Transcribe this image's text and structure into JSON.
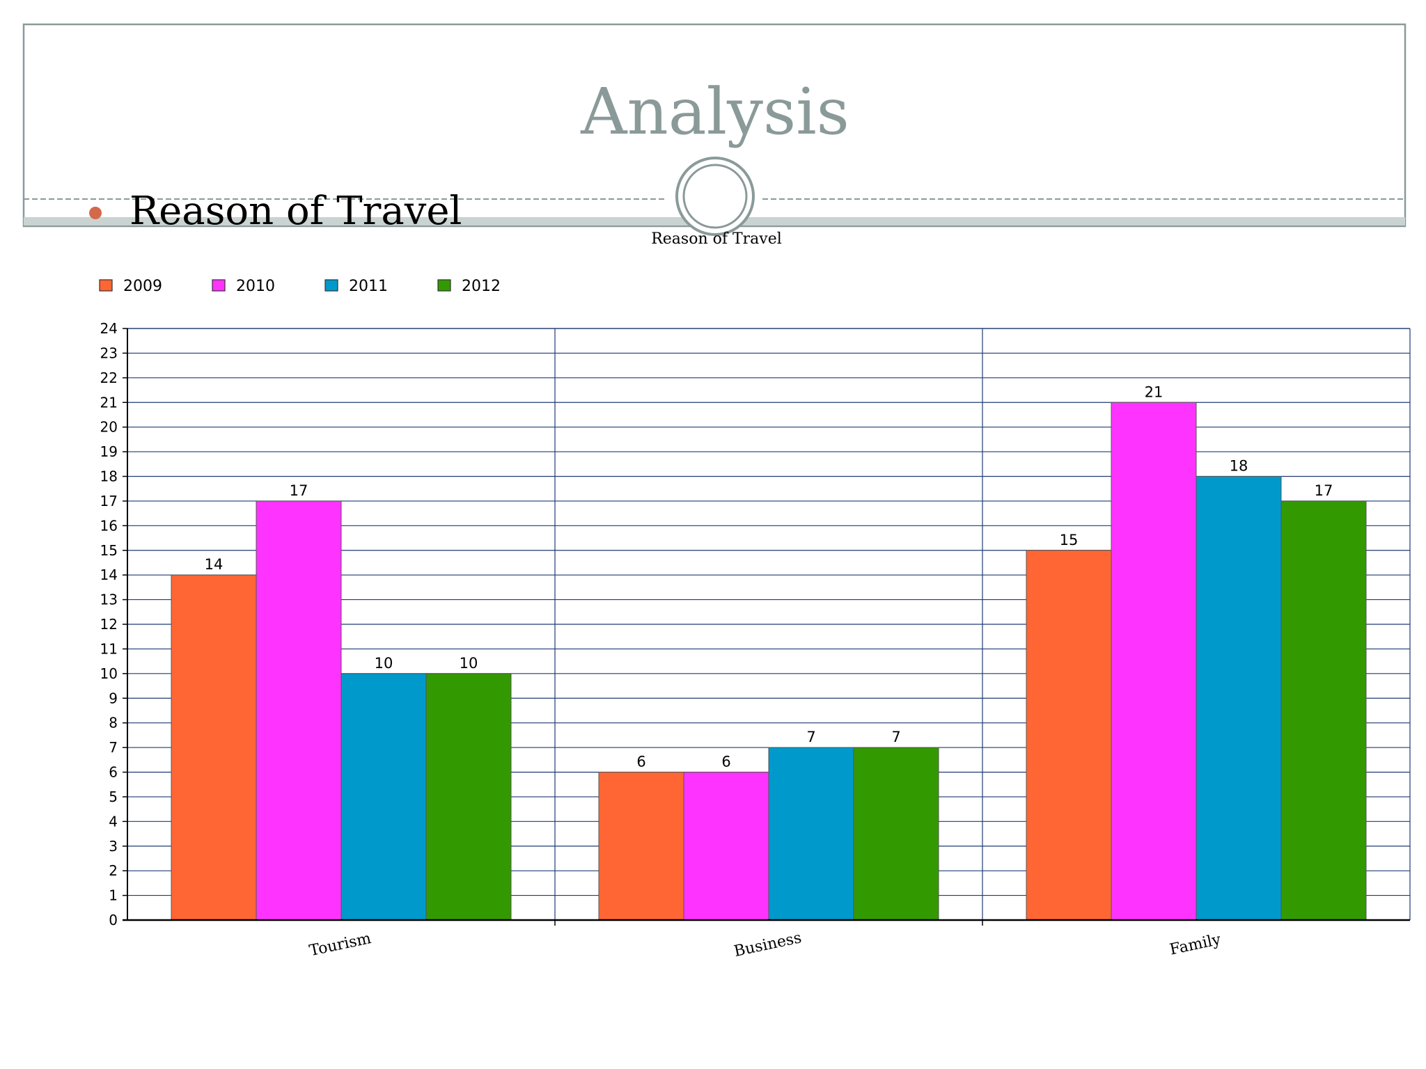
{
  "slide": {
    "title": "Analysis",
    "bullet_text": "Reason of Travel",
    "colors": {
      "title": "#8a9a99",
      "frame_border": "#8a9a99",
      "band": "#c9d3d2",
      "bullet": "#d4694a"
    }
  },
  "chart_data": {
    "type": "bar",
    "title": "Reason of Travel",
    "xlabel": "",
    "ylabel": "",
    "categories": [
      "Tourism",
      "Business",
      "Family"
    ],
    "series": [
      {
        "name": "2009",
        "color": "#ff6633",
        "values": [
          14,
          6,
          15
        ]
      },
      {
        "name": "2010",
        "color": "#ff33ff",
        "values": [
          17,
          6,
          21
        ]
      },
      {
        "name": "2011",
        "color": "#0099cc",
        "values": [
          10,
          7,
          18
        ]
      },
      {
        "name": "2012",
        "color": "#339900",
        "values": [
          10,
          7,
          17
        ]
      }
    ],
    "ylim": [
      0,
      24
    ],
    "ytick_step": 1,
    "grid": true,
    "legend_position": "top-left",
    "data_labels": true
  }
}
